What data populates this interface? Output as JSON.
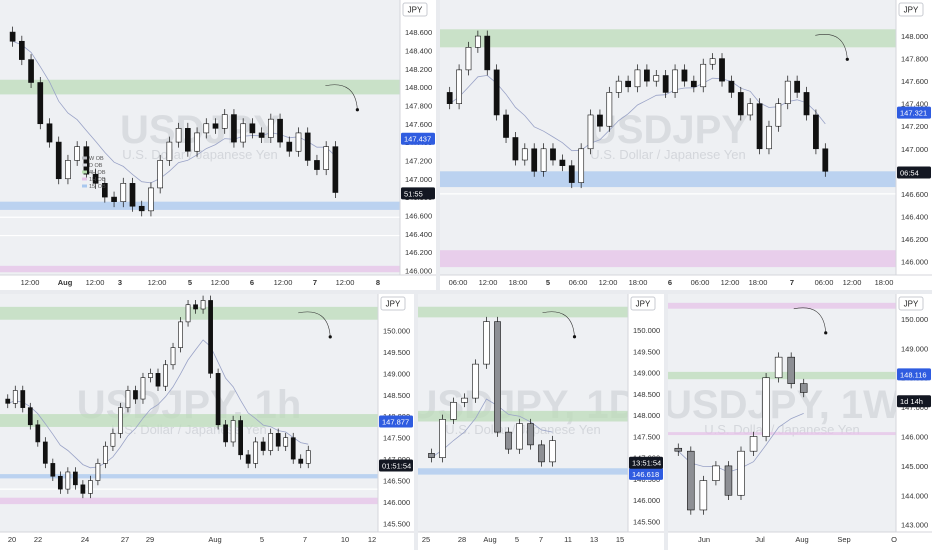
{
  "currency_label": "JPY",
  "chart_data": [
    {
      "type": "candlestick",
      "panel": "top-left",
      "watermark": "USDJPY",
      "watermark_sub": "U.S. Dollar / Japanese Yen",
      "y_ticks": [
        "148.800",
        "148.600",
        "148.400",
        "148.200",
        "148.000",
        "147.800",
        "147.600",
        "147.400",
        "147.200",
        "147.000",
        "146.800",
        "146.600",
        "146.400",
        "146.200",
        "146.000"
      ],
      "ylim": [
        145.95,
        148.95
      ],
      "x_ticks": [
        "12:00",
        "Aug",
        "12:00",
        "3",
        "12:00",
        "5",
        "12:00",
        "6",
        "12:00",
        "7",
        "12:00",
        "8"
      ],
      "price_badge": {
        "value": 147.437,
        "label": "147.437",
        "color": "#2f5ce0"
      },
      "time_badge": {
        "value": 146.84,
        "label": "51:55",
        "color": "#131722"
      },
      "legend": [
        {
          "name": "W OB",
          "color": "#b7b9bf"
        },
        {
          "name": "D OB",
          "color": "#d6d8de"
        },
        {
          "name": "4H OB",
          "color": "#b9dfb2"
        },
        {
          "name": "1H OB",
          "color": "#e5c3e8"
        },
        {
          "name": "15' OB",
          "color": "#a9c8ef"
        }
      ],
      "zones": [
        {
          "y1": 148.08,
          "y2": 147.92,
          "color": "#bcdcb9"
        },
        {
          "y1": 146.75,
          "y2": 146.66,
          "color": "#a9c8ef"
        },
        {
          "y1": 146.05,
          "y2": 145.98,
          "color": "#e5c3e8"
        }
      ],
      "lines": [
        146.58,
        146.38
      ],
      "closes": [
        148.5,
        148.3,
        148.05,
        147.6,
        147.4,
        147.0,
        147.2,
        147.35,
        147.05,
        146.95,
        146.8,
        146.75,
        146.95,
        146.7,
        146.65,
        146.9,
        147.2,
        147.4,
        147.55,
        147.3,
        147.5,
        147.6,
        147.55,
        147.7,
        147.4,
        147.6,
        147.5,
        147.45,
        147.65,
        147.4,
        147.3,
        147.5,
        147.2,
        147.1,
        147.35,
        146.85
      ]
    },
    {
      "type": "candlestick",
      "panel": "top-right",
      "watermark": "USDJPY",
      "watermark_sub": "U.S. Dollar / Japanese Yen",
      "y_ticks": [
        "148.200",
        "148.000",
        "147.800",
        "147.600",
        "147.400",
        "147.200",
        "147.000",
        "146.800",
        "146.600",
        "146.400",
        "146.200",
        "146.000"
      ],
      "ylim": [
        145.88,
        148.32
      ],
      "x_ticks": [
        "06:00",
        "12:00",
        "18:00",
        "5",
        "06:00",
        "12:00",
        "18:00",
        "6",
        "06:00",
        "12:00",
        "18:00",
        "7",
        "06:00",
        "12:00",
        "18:00"
      ],
      "price_badge": {
        "value": 147.321,
        "label": "147.321",
        "color": "#2f5ce0"
      },
      "time_badge": {
        "value": 146.79,
        "label": "06:54",
        "color": "#131722"
      },
      "zones": [
        {
          "y1": 148.06,
          "y2": 147.9,
          "color": "#bcdcb9"
        },
        {
          "y1": 146.8,
          "y2": 146.66,
          "color": "#a9c8ef"
        },
        {
          "y1": 146.1,
          "y2": 145.95,
          "color": "#e5c3e8"
        }
      ],
      "lines": [
        146.6
      ],
      "closes": [
        147.4,
        147.7,
        147.9,
        148.0,
        147.7,
        147.3,
        147.1,
        146.9,
        147.0,
        146.8,
        147.0,
        146.9,
        146.85,
        146.7,
        147.0,
        147.3,
        147.2,
        147.5,
        147.6,
        147.55,
        147.7,
        147.6,
        147.65,
        147.5,
        147.7,
        147.6,
        147.55,
        147.75,
        147.8,
        147.6,
        147.5,
        147.3,
        147.4,
        147.0,
        147.2,
        147.4,
        147.6,
        147.5,
        147.3,
        147.0,
        146.8
      ]
    },
    {
      "type": "candlestick",
      "panel": "bottom-left",
      "watermark": "USDJPY, 1h",
      "watermark_sub": "U.S. Dollar / Japanese Yen",
      "y_ticks": [
        "150.500",
        "150.000",
        "149.500",
        "149.000",
        "148.500",
        "148.000",
        "147.500",
        "147.000",
        "146.500",
        "146.000",
        "145.500"
      ],
      "ylim": [
        145.3,
        150.85
      ],
      "x_ticks": [
        "20",
        "22",
        "24",
        "27",
        "29",
        "Aug",
        "5",
        "7",
        "10",
        "12"
      ],
      "price_badge": {
        "value": 147.877,
        "label": "147.877",
        "color": "#2f5ce0"
      },
      "time_badge": {
        "value": 146.85,
        "label": "01:51:54",
        "color": "#131722"
      },
      "zones": [
        {
          "y1": 150.55,
          "y2": 150.25,
          "color": "#bcdcb9"
        },
        {
          "y1": 148.05,
          "y2": 147.75,
          "color": "#bcdcb9"
        },
        {
          "y1": 146.65,
          "y2": 146.55,
          "color": "#a9c8ef"
        },
        {
          "y1": 146.1,
          "y2": 145.95,
          "color": "#e5c3e8"
        }
      ],
      "lines": [
        146.3
      ],
      "closes": [
        148.3,
        148.6,
        148.2,
        147.8,
        147.4,
        146.9,
        146.6,
        146.3,
        146.7,
        146.4,
        146.2,
        146.5,
        146.9,
        147.3,
        147.6,
        148.2,
        148.6,
        148.4,
        148.9,
        149.0,
        148.7,
        149.2,
        149.6,
        150.2,
        150.6,
        150.5,
        150.7,
        149.0,
        147.8,
        147.4,
        147.9,
        147.1,
        146.9,
        147.4,
        147.2,
        147.6,
        147.3,
        147.5,
        147.0,
        146.9,
        147.2
      ]
    },
    {
      "type": "candlestick",
      "panel": "bottom-middle",
      "watermark": "USDJPY, 1D",
      "watermark_sub": "U.S. Dollar / Japanese Yen",
      "y_ticks": [
        "150.500",
        "150.000",
        "149.500",
        "149.000",
        "148.500",
        "148.000",
        "147.500",
        "147.000",
        "146.500",
        "146.000",
        "145.500"
      ],
      "ylim": [
        145.25,
        150.85
      ],
      "x_ticks": [
        "25",
        "28",
        "Aug",
        "5",
        "7",
        "11",
        "13",
        "15"
      ],
      "price_badge": {
        "value": 146.618,
        "label": "146.618",
        "color": "#2f5ce0"
      },
      "time_badge": {
        "value": 146.88,
        "label": "13:51:54",
        "color": "#131722"
      },
      "zones": [
        {
          "y1": 150.55,
          "y2": 150.3,
          "color": "#bcdcb9"
        },
        {
          "y1": 148.1,
          "y2": 147.85,
          "color": "#bcdcb9"
        },
        {
          "y1": 146.75,
          "y2": 146.6,
          "color": "#a9c8ef"
        }
      ],
      "closes": [
        147.0,
        147.9,
        148.3,
        148.4,
        149.2,
        150.2,
        147.6,
        147.2,
        147.8,
        147.3,
        146.9,
        147.4
      ]
    },
    {
      "type": "candlestick",
      "panel": "bottom-right",
      "watermark": "USDJPY, 1W",
      "watermark_sub": "U.S. Dollar / Japanese Yen",
      "y_ticks": [
        "150.000",
        "149.000",
        "148.000",
        "147.000",
        "146.000",
        "145.000",
        "144.000",
        "143.000"
      ],
      "ylim": [
        142.75,
        150.85
      ],
      "x_ticks": [
        "Jun",
        "Jul",
        "Aug",
        "Sep",
        "O"
      ],
      "price_badge": {
        "value": 148.116,
        "label": "148.116",
        "color": "#2f5ce0"
      },
      "time_badge": {
        "value": 147.2,
        "label": "1d 14h",
        "color": "#131722"
      },
      "zones": [
        {
          "y1": 150.55,
          "y2": 150.35,
          "color": "#e5c3e8"
        },
        {
          "y1": 148.2,
          "y2": 147.95,
          "color": "#bcdcb9"
        },
        {
          "y1": 146.15,
          "y2": 146.05,
          "color": "#e5c3e8"
        }
      ],
      "closes": [
        145.5,
        143.5,
        144.5,
        145.0,
        144.0,
        145.5,
        146.0,
        148.0,
        148.7,
        147.8,
        147.5
      ]
    }
  ]
}
